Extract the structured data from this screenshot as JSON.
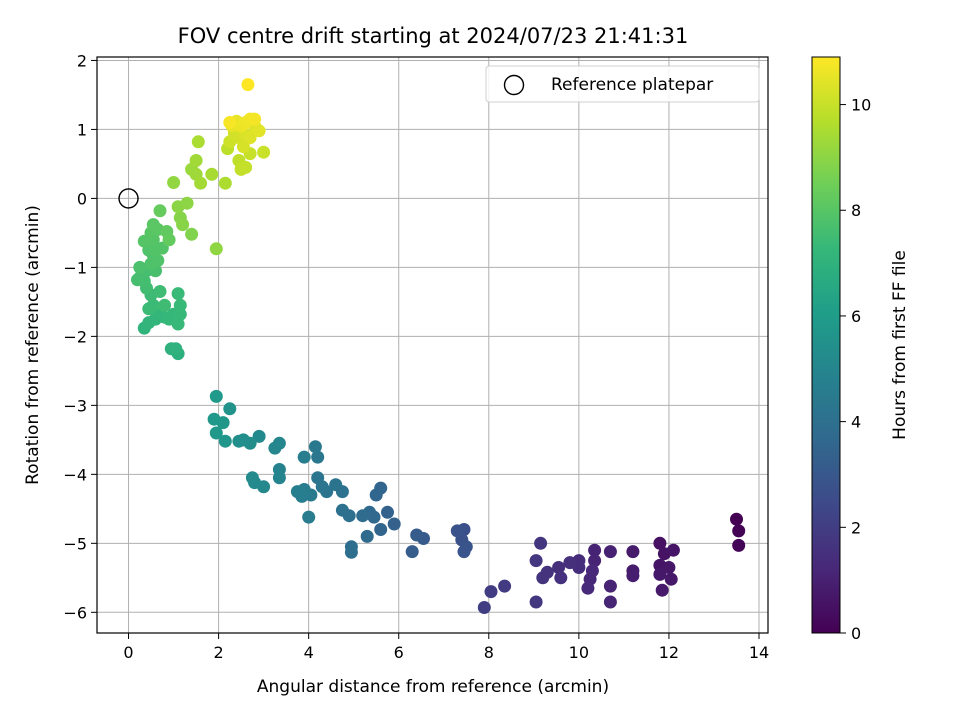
{
  "chart_data": {
    "type": "scatter",
    "title": "FOV centre drift starting at 2024/07/23 21:41:31",
    "xlabel": "Angular distance from reference (arcmin)",
    "ylabel": "Rotation from reference (arcmin)",
    "xlim": [
      -0.7,
      14.2
    ],
    "ylim": [
      -6.3,
      2.05
    ],
    "xticks": [
      0,
      2,
      4,
      6,
      8,
      10,
      12,
      14
    ],
    "yticks": [
      -6,
      -5,
      -4,
      -3,
      -2,
      -1,
      0,
      1,
      2
    ],
    "grid": true,
    "legend": {
      "position": "top-right",
      "entries": [
        {
          "label": "Reference platepar",
          "marker": "open-circle"
        }
      ]
    },
    "reference_point": {
      "x": 0,
      "y": 0
    },
    "colorbar": {
      "label": "Hours from first FF file",
      "colormap": "viridis",
      "range": [
        0,
        10.9
      ],
      "ticks": [
        0,
        2,
        4,
        6,
        8,
        10
      ],
      "colors": [
        "#440154",
        "#482878",
        "#3e4989",
        "#31688e",
        "#26828e",
        "#1f9e89",
        "#35b779",
        "#6ece58",
        "#b5de2b",
        "#fde725"
      ]
    },
    "points": [
      {
        "x": 13.5,
        "y": -4.65,
        "c": 0.0
      },
      {
        "x": 13.55,
        "y": -4.82,
        "c": 0.05
      },
      {
        "x": 13.55,
        "y": -5.03,
        "c": 0.1
      },
      {
        "x": 11.8,
        "y": -5.0,
        "c": 0.5
      },
      {
        "x": 11.9,
        "y": -5.15,
        "c": 0.55
      },
      {
        "x": 12.1,
        "y": -5.1,
        "c": 0.6
      },
      {
        "x": 11.8,
        "y": -5.32,
        "c": 0.6
      },
      {
        "x": 12.0,
        "y": -5.35,
        "c": 0.65
      },
      {
        "x": 11.8,
        "y": -5.45,
        "c": 0.7
      },
      {
        "x": 12.05,
        "y": -5.52,
        "c": 0.7
      },
      {
        "x": 11.85,
        "y": -5.68,
        "c": 0.75
      },
      {
        "x": 11.2,
        "y": -5.12,
        "c": 0.8
      },
      {
        "x": 11.2,
        "y": -5.4,
        "c": 0.85
      },
      {
        "x": 11.2,
        "y": -5.47,
        "c": 0.9
      },
      {
        "x": 10.7,
        "y": -5.12,
        "c": 1.0
      },
      {
        "x": 10.35,
        "y": -5.1,
        "c": 1.05
      },
      {
        "x": 10.35,
        "y": -5.25,
        "c": 1.1
      },
      {
        "x": 10.7,
        "y": -5.62,
        "c": 1.1
      },
      {
        "x": 10.7,
        "y": -5.85,
        "c": 1.15
      },
      {
        "x": 10.3,
        "y": -5.4,
        "c": 1.2
      },
      {
        "x": 10.25,
        "y": -5.52,
        "c": 1.25
      },
      {
        "x": 10.2,
        "y": -5.65,
        "c": 1.3
      },
      {
        "x": 10.0,
        "y": -5.25,
        "c": 1.35
      },
      {
        "x": 10.0,
        "y": -5.35,
        "c": 1.4
      },
      {
        "x": 9.8,
        "y": -5.28,
        "c": 1.45
      },
      {
        "x": 9.55,
        "y": -5.35,
        "c": 1.5
      },
      {
        "x": 9.6,
        "y": -5.5,
        "c": 1.55
      },
      {
        "x": 9.3,
        "y": -5.42,
        "c": 1.6
      },
      {
        "x": 9.2,
        "y": -5.5,
        "c": 1.65
      },
      {
        "x": 9.15,
        "y": -5.0,
        "c": 1.7
      },
      {
        "x": 9.05,
        "y": -5.25,
        "c": 1.75
      },
      {
        "x": 9.05,
        "y": -5.85,
        "c": 1.8
      },
      {
        "x": 8.35,
        "y": -5.62,
        "c": 1.9
      },
      {
        "x": 8.05,
        "y": -5.7,
        "c": 1.95
      },
      {
        "x": 7.9,
        "y": -5.93,
        "c": 2.0
      },
      {
        "x": 7.45,
        "y": -4.8,
        "c": 2.7
      },
      {
        "x": 7.4,
        "y": -4.95,
        "c": 2.75
      },
      {
        "x": 7.3,
        "y": -4.82,
        "c": 2.8
      },
      {
        "x": 7.5,
        "y": -5.05,
        "c": 2.85
      },
      {
        "x": 7.45,
        "y": -5.12,
        "c": 2.9
      },
      {
        "x": 6.55,
        "y": -4.93,
        "c": 3.1
      },
      {
        "x": 6.4,
        "y": -4.88,
        "c": 3.15
      },
      {
        "x": 6.3,
        "y": -5.12,
        "c": 3.2
      },
      {
        "x": 5.9,
        "y": -4.72,
        "c": 3.4
      },
      {
        "x": 5.75,
        "y": -4.55,
        "c": 3.45
      },
      {
        "x": 5.6,
        "y": -4.8,
        "c": 3.5
      },
      {
        "x": 5.6,
        "y": -4.2,
        "c": 3.55
      },
      {
        "x": 5.5,
        "y": -4.3,
        "c": 3.6
      },
      {
        "x": 5.45,
        "y": -4.62,
        "c": 3.65
      },
      {
        "x": 5.35,
        "y": -4.55,
        "c": 3.7
      },
      {
        "x": 5.3,
        "y": -4.9,
        "c": 3.75
      },
      {
        "x": 5.2,
        "y": -4.6,
        "c": 3.8
      },
      {
        "x": 4.95,
        "y": -5.05,
        "c": 3.9
      },
      {
        "x": 4.95,
        "y": -5.13,
        "c": 3.95
      },
      {
        "x": 4.9,
        "y": -4.6,
        "c": 4.0
      },
      {
        "x": 4.75,
        "y": -4.52,
        "c": 4.05
      },
      {
        "x": 4.75,
        "y": -4.25,
        "c": 4.1
      },
      {
        "x": 4.6,
        "y": -4.15,
        "c": 4.15
      },
      {
        "x": 4.4,
        "y": -4.25,
        "c": 4.2
      },
      {
        "x": 4.3,
        "y": -4.18,
        "c": 4.25
      },
      {
        "x": 4.2,
        "y": -4.05,
        "c": 4.3
      },
      {
        "x": 4.2,
        "y": -3.75,
        "c": 4.35
      },
      {
        "x": 4.15,
        "y": -3.6,
        "c": 4.4
      },
      {
        "x": 4.05,
        "y": -4.3,
        "c": 4.45
      },
      {
        "x": 4.0,
        "y": -4.62,
        "c": 4.5
      },
      {
        "x": 3.9,
        "y": -4.22,
        "c": 4.55
      },
      {
        "x": 3.9,
        "y": -3.75,
        "c": 4.6
      },
      {
        "x": 3.85,
        "y": -4.32,
        "c": 4.65
      },
      {
        "x": 3.75,
        "y": -4.25,
        "c": 4.7
      },
      {
        "x": 3.35,
        "y": -3.93,
        "c": 4.9
      },
      {
        "x": 3.35,
        "y": -4.05,
        "c": 4.95
      },
      {
        "x": 3.35,
        "y": -3.55,
        "c": 5.0
      },
      {
        "x": 3.25,
        "y": -3.62,
        "c": 5.05
      },
      {
        "x": 3.0,
        "y": -4.18,
        "c": 5.1
      },
      {
        "x": 2.9,
        "y": -3.45,
        "c": 5.15
      },
      {
        "x": 2.8,
        "y": -4.12,
        "c": 5.2
      },
      {
        "x": 2.75,
        "y": -4.05,
        "c": 5.25
      },
      {
        "x": 2.7,
        "y": -3.55,
        "c": 5.3
      },
      {
        "x": 2.55,
        "y": -3.5,
        "c": 5.35
      },
      {
        "x": 2.45,
        "y": -3.52,
        "c": 5.4
      },
      {
        "x": 2.25,
        "y": -3.05,
        "c": 5.6
      },
      {
        "x": 2.15,
        "y": -3.52,
        "c": 5.7
      },
      {
        "x": 2.1,
        "y": -3.25,
        "c": 5.75
      },
      {
        "x": 1.95,
        "y": -3.4,
        "c": 5.8
      },
      {
        "x": 1.9,
        "y": -3.2,
        "c": 5.85
      },
      {
        "x": 1.95,
        "y": -2.87,
        "c": 5.9
      },
      {
        "x": 1.1,
        "y": -2.25,
        "c": 6.9
      },
      {
        "x": 0.95,
        "y": -2.18,
        "c": 6.95
      },
      {
        "x": 1.05,
        "y": -2.18,
        "c": 7.0
      },
      {
        "x": 0.35,
        "y": -1.88,
        "c": 7.05
      },
      {
        "x": 0.45,
        "y": -1.8,
        "c": 7.1
      },
      {
        "x": 0.6,
        "y": -1.75,
        "c": 7.15
      },
      {
        "x": 0.7,
        "y": -1.65,
        "c": 7.2
      },
      {
        "x": 0.8,
        "y": -1.72,
        "c": 7.2
      },
      {
        "x": 0.9,
        "y": -1.75,
        "c": 7.25
      },
      {
        "x": 1.0,
        "y": -1.68,
        "c": 7.25
      },
      {
        "x": 1.1,
        "y": -1.82,
        "c": 7.3
      },
      {
        "x": 1.15,
        "y": -1.68,
        "c": 7.3
      },
      {
        "x": 1.15,
        "y": -1.55,
        "c": 7.35
      },
      {
        "x": 1.1,
        "y": -1.38,
        "c": 7.35
      },
      {
        "x": 0.55,
        "y": -1.55,
        "c": 7.4
      },
      {
        "x": 0.45,
        "y": -1.6,
        "c": 7.4
      },
      {
        "x": 0.5,
        "y": -1.4,
        "c": 7.45
      },
      {
        "x": 0.7,
        "y": -1.35,
        "c": 7.5
      },
      {
        "x": 0.8,
        "y": -1.55,
        "c": 7.5
      },
      {
        "x": 0.4,
        "y": -1.3,
        "c": 7.55
      },
      {
        "x": 0.35,
        "y": -1.2,
        "c": 7.6
      },
      {
        "x": 0.25,
        "y": -1.15,
        "c": 7.6
      },
      {
        "x": 0.2,
        "y": -1.18,
        "c": 7.65
      },
      {
        "x": 0.4,
        "y": -1.05,
        "c": 7.65
      },
      {
        "x": 0.6,
        "y": -1.05,
        "c": 7.7
      },
      {
        "x": 0.25,
        "y": -1.0,
        "c": 7.75
      },
      {
        "x": 0.5,
        "y": -0.95,
        "c": 7.8
      },
      {
        "x": 0.55,
        "y": -0.82,
        "c": 7.8
      },
      {
        "x": 0.65,
        "y": -0.9,
        "c": 7.85
      },
      {
        "x": 0.45,
        "y": -0.75,
        "c": 7.85
      },
      {
        "x": 0.6,
        "y": -0.75,
        "c": 7.9
      },
      {
        "x": 0.75,
        "y": -0.72,
        "c": 7.9
      },
      {
        "x": 0.35,
        "y": -0.62,
        "c": 7.95
      },
      {
        "x": 0.55,
        "y": -0.6,
        "c": 7.95
      },
      {
        "x": 0.5,
        "y": -0.5,
        "c": 8.0
      },
      {
        "x": 0.55,
        "y": -0.38,
        "c": 8.05
      },
      {
        "x": 0.65,
        "y": -0.45,
        "c": 8.05
      },
      {
        "x": 0.85,
        "y": -0.48,
        "c": 8.2
      },
      {
        "x": 0.9,
        "y": -0.6,
        "c": 8.25
      },
      {
        "x": 0.7,
        "y": -0.18,
        "c": 8.3
      },
      {
        "x": 1.4,
        "y": -0.52,
        "c": 8.8
      },
      {
        "x": 1.15,
        "y": -0.28,
        "c": 8.85
      },
      {
        "x": 1.2,
        "y": -0.38,
        "c": 8.9
      },
      {
        "x": 1.1,
        "y": -0.12,
        "c": 8.95
      },
      {
        "x": 1.3,
        "y": -0.07,
        "c": 9.0
      },
      {
        "x": 1.95,
        "y": -0.73,
        "c": 9.05
      },
      {
        "x": 1.0,
        "y": 0.23,
        "c": 9.1
      },
      {
        "x": 1.4,
        "y": 0.42,
        "c": 9.25
      },
      {
        "x": 1.5,
        "y": 0.35,
        "c": 9.3
      },
      {
        "x": 1.5,
        "y": 0.55,
        "c": 9.35
      },
      {
        "x": 1.6,
        "y": 0.22,
        "c": 9.4
      },
      {
        "x": 1.85,
        "y": 0.35,
        "c": 9.45
      },
      {
        "x": 1.55,
        "y": 0.82,
        "c": 9.5
      },
      {
        "x": 2.15,
        "y": 0.22,
        "c": 9.55
      },
      {
        "x": 2.2,
        "y": 0.72,
        "c": 9.8
      },
      {
        "x": 2.45,
        "y": 0.55,
        "c": 9.85
      },
      {
        "x": 2.5,
        "y": 0.42,
        "c": 9.9
      },
      {
        "x": 2.6,
        "y": 0.45,
        "c": 9.95
      },
      {
        "x": 2.7,
        "y": 0.65,
        "c": 10.0
      },
      {
        "x": 3.0,
        "y": 0.67,
        "c": 10.05
      },
      {
        "x": 2.25,
        "y": 0.82,
        "c": 10.1
      },
      {
        "x": 2.35,
        "y": 0.95,
        "c": 10.15
      },
      {
        "x": 2.45,
        "y": 0.88,
        "c": 10.2
      },
      {
        "x": 2.55,
        "y": 0.75,
        "c": 10.25
      },
      {
        "x": 2.6,
        "y": 0.92,
        "c": 10.3
      },
      {
        "x": 2.7,
        "y": 0.88,
        "c": 10.35
      },
      {
        "x": 2.8,
        "y": 1.05,
        "c": 10.4
      },
      {
        "x": 2.9,
        "y": 0.98,
        "c": 10.45
      },
      {
        "x": 2.3,
        "y": 1.05,
        "c": 10.5
      },
      {
        "x": 2.4,
        "y": 1.12,
        "c": 10.55
      },
      {
        "x": 2.5,
        "y": 1.05,
        "c": 10.6
      },
      {
        "x": 2.6,
        "y": 1.1,
        "c": 10.65
      },
      {
        "x": 2.7,
        "y": 1.15,
        "c": 10.7
      },
      {
        "x": 2.8,
        "y": 1.15,
        "c": 10.75
      },
      {
        "x": 2.25,
        "y": 1.1,
        "c": 10.8
      },
      {
        "x": 2.65,
        "y": 1.65,
        "c": 10.9
      }
    ]
  }
}
